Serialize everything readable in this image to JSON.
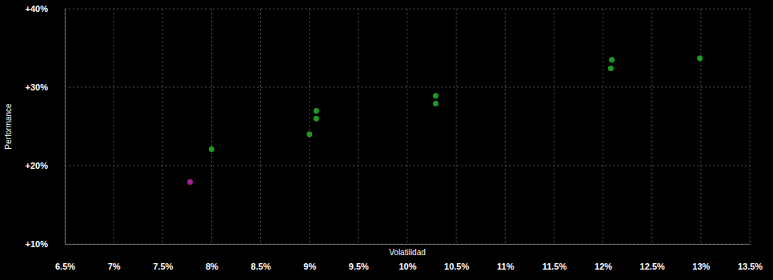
{
  "chart_data": {
    "type": "scatter",
    "x_label": "Volatilidad",
    "y_label": "Performance",
    "x": [
      7.78,
      8.0,
      9.0,
      9.07,
      9.07,
      10.29,
      10.29,
      12.09,
      12.08,
      12.99
    ],
    "y": [
      17.9,
      22.1,
      24.0,
      27.0,
      26.0,
      28.9,
      27.9,
      33.5,
      32.4,
      33.7
    ],
    "colors": [
      "#a0258f",
      "#1f9a1f",
      "#1f9a1f",
      "#1f9a1f",
      "#1f9a1f",
      "#1f9a1f",
      "#1f9a1f",
      "#1f9a1f",
      "#1f9a1f",
      "#1f9a1f"
    ],
    "marker": "circle",
    "xlim": [
      6.5,
      13.5
    ],
    "xticks": [
      {
        "value": 6.5,
        "label": "6.5%"
      },
      {
        "value": 7,
        "label": "7%"
      },
      {
        "value": 7.5,
        "label": "7.5%"
      },
      {
        "value": 8,
        "label": "8%"
      },
      {
        "value": 8.5,
        "label": "8.5%"
      },
      {
        "value": 9,
        "label": "9%"
      },
      {
        "value": 9.5,
        "label": "9.5%"
      },
      {
        "value": 10,
        "label": "10%"
      },
      {
        "value": 10.5,
        "label": "10.5%"
      },
      {
        "value": 11,
        "label": "11%"
      },
      {
        "value": 11.5,
        "label": "11.5%"
      },
      {
        "value": 12,
        "label": "12%"
      },
      {
        "value": 12.5,
        "label": "12.5%"
      },
      {
        "value": 13,
        "label": "13%"
      },
      {
        "value": 13.5,
        "label": "13.5%"
      }
    ],
    "ylim": [
      10,
      40
    ],
    "yticks": [
      {
        "value": 10,
        "label": "+10%"
      },
      {
        "value": 20,
        "label": "+20%"
      },
      {
        "value": 30,
        "label": "+30%"
      },
      {
        "value": 40,
        "label": "+40%"
      }
    ],
    "grid": true
  }
}
